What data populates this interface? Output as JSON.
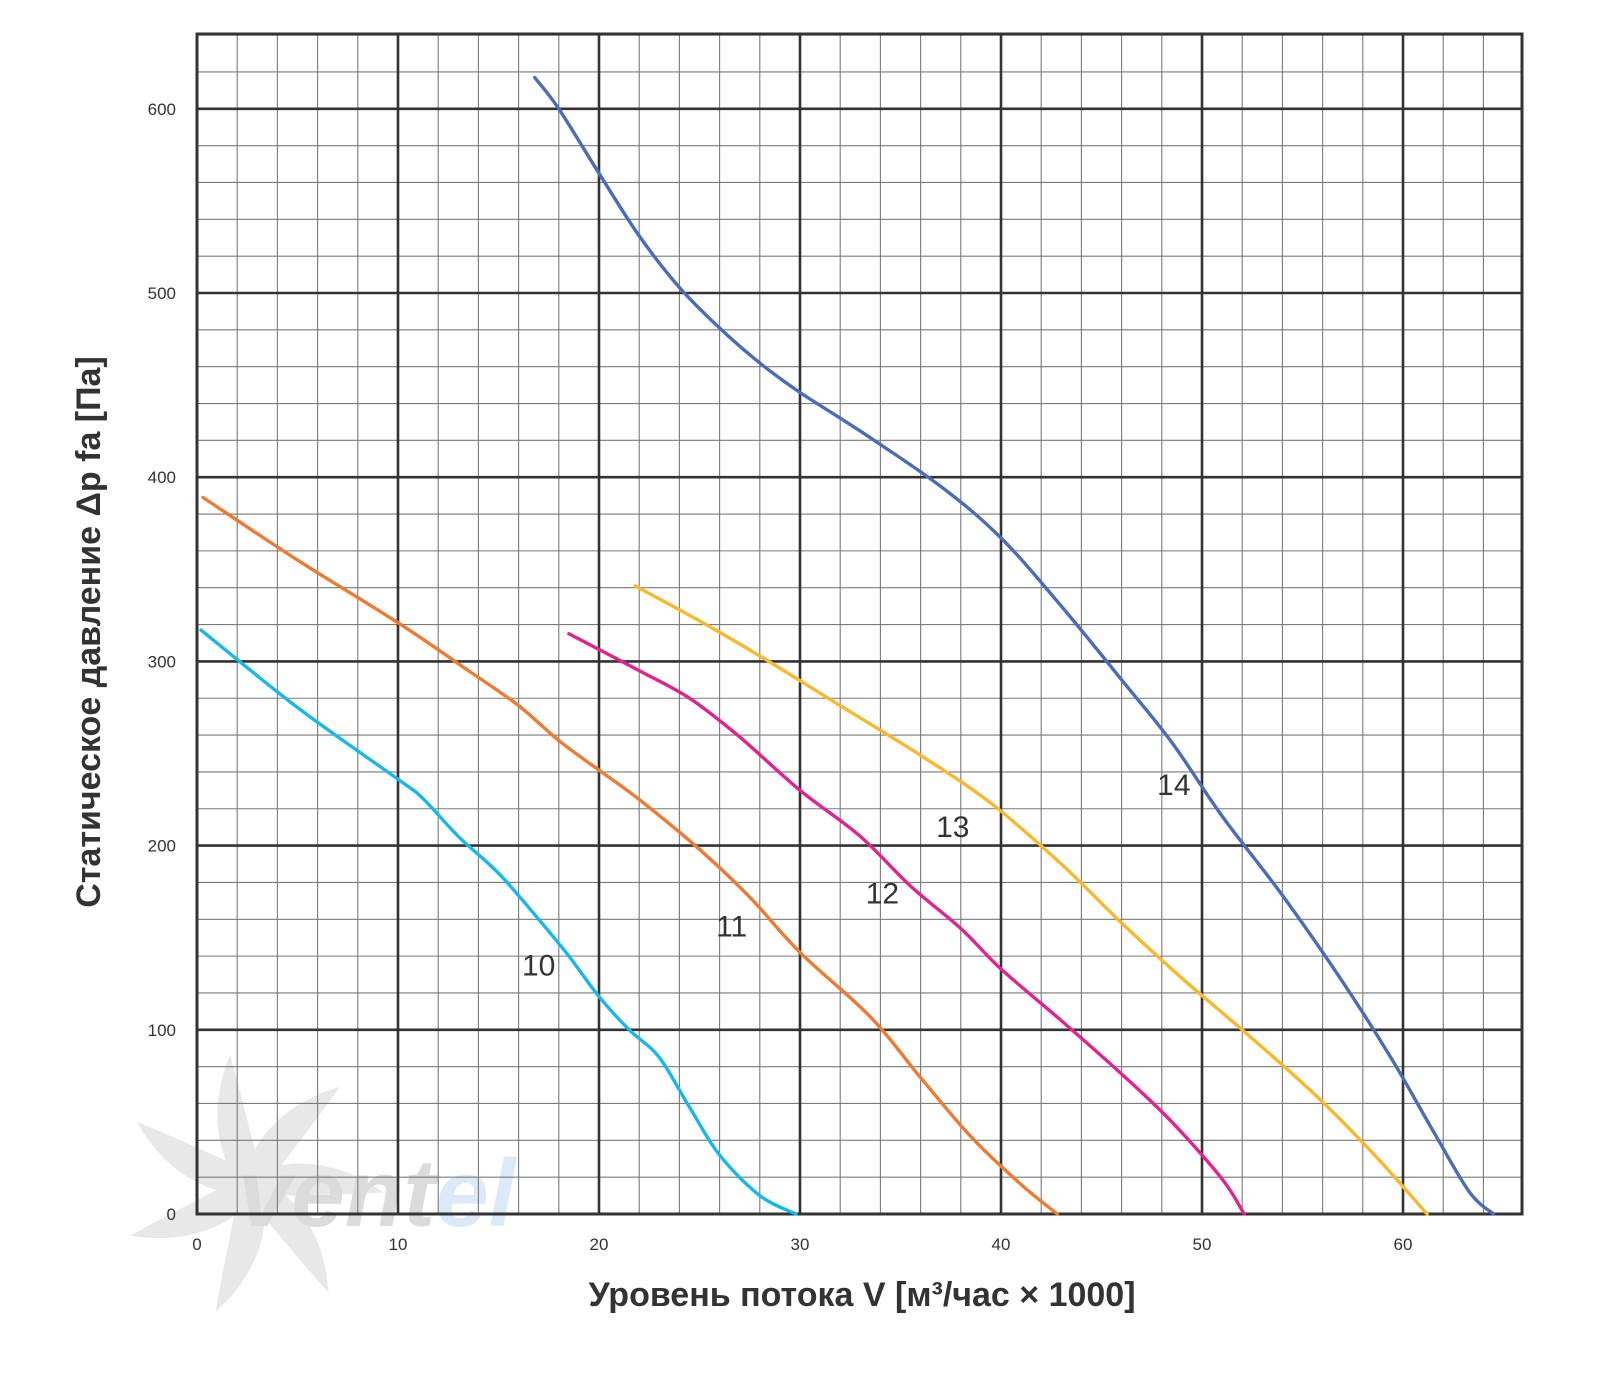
{
  "chart_data": {
    "type": "line",
    "xlabel": "Уровень потока V [м³/час × 1000]",
    "ylabel": "Статическое давление Δp fa [Па]",
    "xlim": [
      0,
      66
    ],
    "ylim": [
      0,
      640
    ],
    "x_ticks": [
      0,
      10,
      20,
      30,
      40,
      50,
      60
    ],
    "y_ticks": [
      0,
      100,
      200,
      300,
      400,
      500,
      600
    ],
    "x_tick_labels": [
      "0",
      "10",
      "20",
      "30",
      "40",
      "50",
      "60"
    ],
    "y_tick_labels": [
      "0",
      "100",
      "200",
      "300",
      "400",
      "500",
      "600"
    ],
    "grid": true,
    "minor_grid": {
      "x_step": 2,
      "y_step": 20
    },
    "legend": "none",
    "watermark": {
      "text_dark": "vent",
      "text_light": "el"
    },
    "series": [
      {
        "label": "10",
        "color": "#1ab8e8",
        "label_position": [
          17,
          135
        ],
        "points": [
          [
            0.2,
            317
          ],
          [
            5,
            275
          ],
          [
            10,
            236
          ],
          [
            11.2,
            226
          ],
          [
            13,
            205
          ],
          [
            15,
            185
          ],
          [
            17,
            160
          ],
          [
            18.5,
            140
          ],
          [
            20,
            118
          ],
          [
            21.5,
            100
          ],
          [
            23,
            85
          ],
          [
            24.5,
            58
          ],
          [
            26,
            32
          ],
          [
            28,
            10
          ],
          [
            29.8,
            0
          ]
        ]
      },
      {
        "label": "11",
        "color": "#ec7b33",
        "label_position": [
          26.6,
          156
        ],
        "points": [
          [
            0.3,
            389
          ],
          [
            5,
            355
          ],
          [
            10,
            321
          ],
          [
            13.5,
            295
          ],
          [
            16,
            276
          ],
          [
            18,
            257
          ],
          [
            20,
            241
          ],
          [
            22,
            225
          ],
          [
            25,
            198
          ],
          [
            27.5,
            172
          ],
          [
            30,
            142
          ],
          [
            33.5,
            107
          ],
          [
            36,
            74
          ],
          [
            38.5,
            42
          ],
          [
            41,
            16
          ],
          [
            42.8,
            0
          ]
        ]
      },
      {
        "label": "12",
        "color": "#e0238f",
        "label_position": [
          34.1,
          174
        ],
        "points": [
          [
            18.5,
            315
          ],
          [
            22,
            295
          ],
          [
            24.5,
            280
          ],
          [
            27,
            259
          ],
          [
            30,
            230
          ],
          [
            33,
            205
          ],
          [
            35.5,
            178
          ],
          [
            38,
            155
          ],
          [
            40,
            133
          ],
          [
            43,
            105
          ],
          [
            46,
            76
          ],
          [
            48.5,
            50
          ],
          [
            51,
            19
          ],
          [
            52.1,
            0
          ]
        ]
      },
      {
        "label": "13",
        "color": "#f8b92e",
        "label_position": [
          37.6,
          210
        ],
        "points": [
          [
            21.8,
            341
          ],
          [
            25,
            322
          ],
          [
            28,
            303
          ],
          [
            32,
            276
          ],
          [
            36,
            249
          ],
          [
            39.5,
            223
          ],
          [
            43,
            190
          ],
          [
            46,
            158
          ],
          [
            49,
            128
          ],
          [
            52,
            100
          ],
          [
            55.5,
            66
          ],
          [
            58.5,
            33
          ],
          [
            61.2,
            0
          ]
        ]
      },
      {
        "label": "14",
        "color": "#4a6db5",
        "label_position": [
          48.6,
          233
        ],
        "points": [
          [
            16.8,
            617
          ],
          [
            18,
            600
          ],
          [
            20,
            565
          ],
          [
            22,
            531
          ],
          [
            24,
            503
          ],
          [
            26,
            481
          ],
          [
            28,
            462
          ],
          [
            30,
            446
          ],
          [
            33,
            425
          ],
          [
            37,
            395
          ],
          [
            40,
            367
          ],
          [
            43,
            330
          ],
          [
            46,
            290
          ],
          [
            48.5,
            256
          ],
          [
            51,
            216
          ],
          [
            54,
            173
          ],
          [
            57,
            126
          ],
          [
            59.5,
            83
          ],
          [
            61.5,
            45
          ],
          [
            63.3,
            12
          ],
          [
            64.5,
            0
          ]
        ]
      }
    ]
  }
}
